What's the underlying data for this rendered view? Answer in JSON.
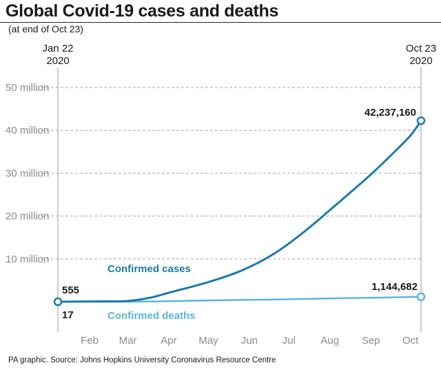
{
  "header": {
    "title": "Global Covid-19 cases and deaths",
    "subtitle": "(at end of Oct 23)"
  },
  "footer": {
    "source": "PA graphic. Source: Johns Hopkins University Coronavirus Resource Centre"
  },
  "colors": {
    "cases": "#1a7aad",
    "deaths": "#5bb6da",
    "grid": "#a8a8a8",
    "axis_text": "#8a8a8a",
    "text": "#1a1a1a"
  },
  "chart_data": {
    "type": "line",
    "title": "Global Covid-19 cases and deaths",
    "subtitle": "(at end of Oct 23)",
    "xlabel": "",
    "ylabel": "",
    "x_range": [
      "2020-01-22",
      "2020-10-23"
    ],
    "ylim": [
      0,
      50000000
    ],
    "y_ticks": [
      10000000,
      20000000,
      30000000,
      40000000,
      50000000
    ],
    "y_tick_labels": [
      "10 million",
      "20 million",
      "30 million",
      "40 million",
      "50 million"
    ],
    "x_month_ticks": [
      {
        "date": "2020-02-15",
        "label": "Feb"
      },
      {
        "date": "2020-03-15",
        "label": "Mar"
      },
      {
        "date": "2020-04-15",
        "label": "Apr"
      },
      {
        "date": "2020-05-15",
        "label": "May"
      },
      {
        "date": "2020-06-15",
        "label": "Jun"
      },
      {
        "date": "2020-07-15",
        "label": "Jul"
      },
      {
        "date": "2020-08-15",
        "label": "Aug"
      },
      {
        "date": "2020-09-15",
        "label": "Sep"
      },
      {
        "date": "2020-10-15",
        "label": "Oct"
      }
    ],
    "endpoints": {
      "start": {
        "date": "2020-01-22",
        "line1": "Jan 22",
        "line2": "2020"
      },
      "end": {
        "date": "2020-10-23",
        "line1": "Oct 23",
        "line2": "2020"
      }
    },
    "grid": true,
    "series": [
      {
        "name": "Confirmed cases",
        "start_label": "555",
        "end_label": "42,237,160",
        "points": [
          {
            "x": "2020-01-22",
            "y": 555
          },
          {
            "x": "2020-02-15",
            "y": 69000
          },
          {
            "x": "2020-03-01",
            "y": 88000
          },
          {
            "x": "2020-03-15",
            "y": 170000
          },
          {
            "x": "2020-04-01",
            "y": 950000
          },
          {
            "x": "2020-04-15",
            "y": 2100000
          },
          {
            "x": "2020-05-01",
            "y": 3400000
          },
          {
            "x": "2020-05-15",
            "y": 4600000
          },
          {
            "x": "2020-06-01",
            "y": 6300000
          },
          {
            "x": "2020-06-15",
            "y": 8100000
          },
          {
            "x": "2020-07-01",
            "y": 10700000
          },
          {
            "x": "2020-07-15",
            "y": 13600000
          },
          {
            "x": "2020-08-01",
            "y": 17700000
          },
          {
            "x": "2020-08-15",
            "y": 21400000
          },
          {
            "x": "2020-09-01",
            "y": 25900000
          },
          {
            "x": "2020-09-15",
            "y": 29700000
          },
          {
            "x": "2020-10-01",
            "y": 34400000
          },
          {
            "x": "2020-10-15",
            "y": 38800000
          },
          {
            "x": "2020-10-23",
            "y": 42237160
          }
        ]
      },
      {
        "name": "Confirmed deaths",
        "start_label": "17",
        "end_label": "1,144,682",
        "points": [
          {
            "x": "2020-01-22",
            "y": 17
          },
          {
            "x": "2020-03-15",
            "y": 6500
          },
          {
            "x": "2020-04-15",
            "y": 135000
          },
          {
            "x": "2020-05-15",
            "y": 310000
          },
          {
            "x": "2020-06-15",
            "y": 440000
          },
          {
            "x": "2020-07-15",
            "y": 585000
          },
          {
            "x": "2020-08-15",
            "y": 770000
          },
          {
            "x": "2020-09-15",
            "y": 935000
          },
          {
            "x": "2020-10-23",
            "y": 1144682
          }
        ]
      }
    ]
  }
}
